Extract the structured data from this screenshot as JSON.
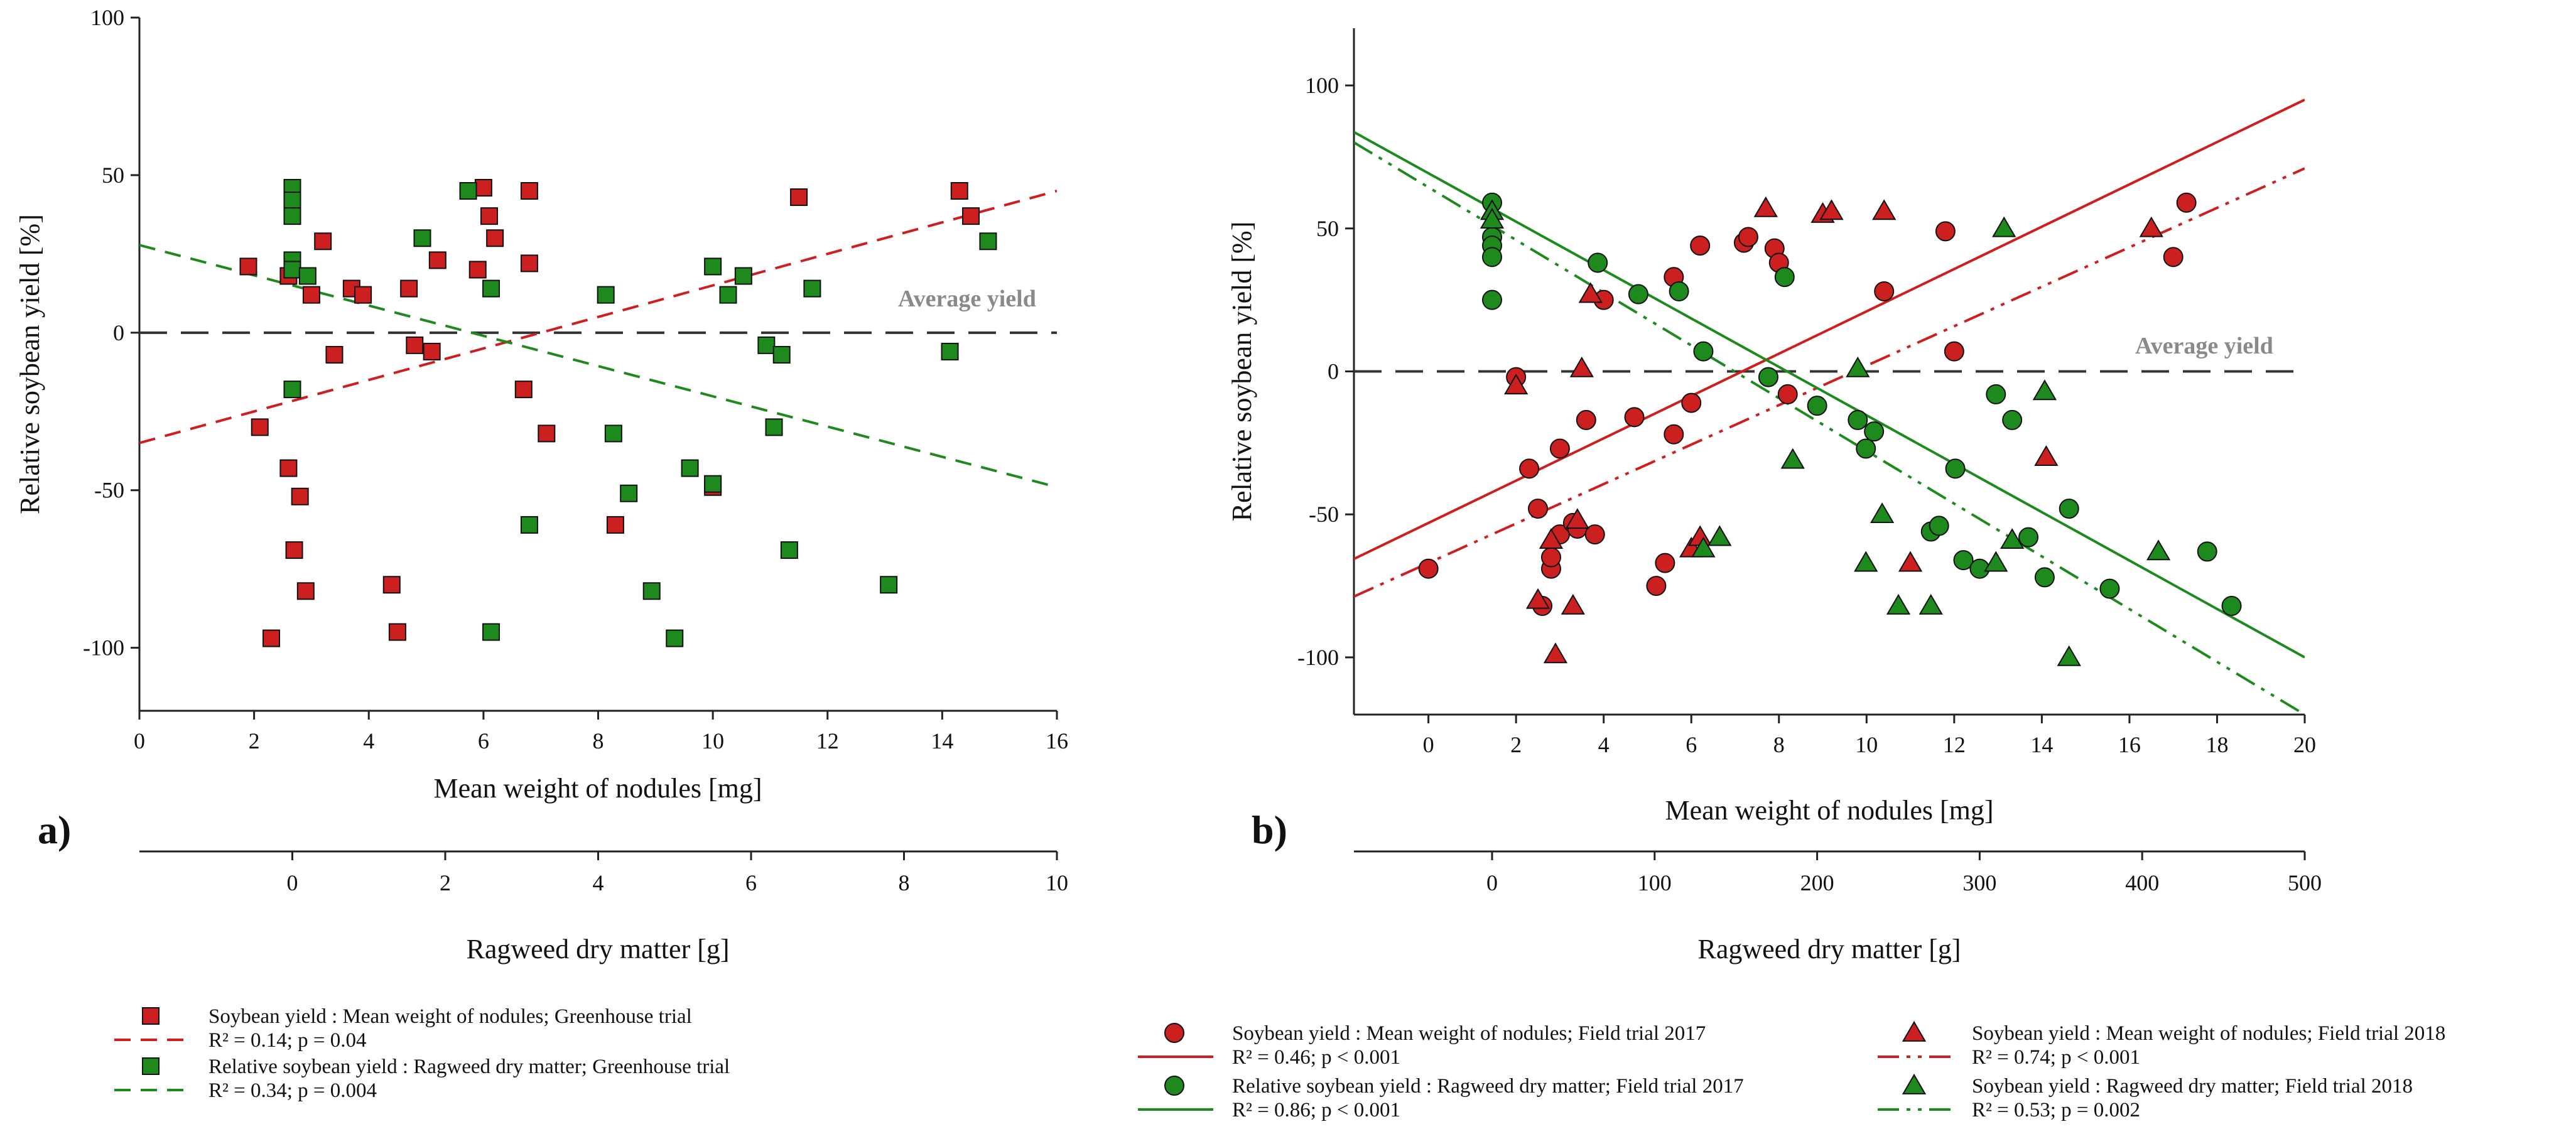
{
  "colors": {
    "red": "#cc1f1f",
    "green": "#1e8a1e",
    "average": "#333333",
    "average_label": "#8a8a8a",
    "axis": "#222222"
  },
  "chart_data": [
    {
      "id": "a",
      "type": "scatter",
      "panel_label": "a)",
      "ylabel": "Relative soybean yield [%]",
      "xlabel": "Mean weight of nodules [mg]",
      "x2label": "Ragweed dry matter [g]",
      "xlim": [
        0,
        16
      ],
      "ylim": [
        -120,
        100
      ],
      "yticks": [
        100,
        50,
        0,
        -50,
        -100
      ],
      "xticks": [
        0,
        2,
        4,
        6,
        8,
        10,
        12,
        14,
        16
      ],
      "x2lim": [
        -2,
        10
      ],
      "x2ticks": [
        0,
        2,
        4,
        6,
        8,
        10
      ],
      "average_label": "Average yield",
      "series": [
        {
          "name": "Soybean yield : Mean weight of nodules;  Greenhouse trial",
          "color": "red",
          "marker": "square",
          "axis": "x",
          "points": [
            [
              1.9,
              21
            ],
            [
              2.1,
              -30
            ],
            [
              2.3,
              -97
            ],
            [
              2.6,
              18
            ],
            [
              2.6,
              -43
            ],
            [
              2.7,
              -69
            ],
            [
              2.8,
              -52
            ],
            [
              2.9,
              -82
            ],
            [
              3.0,
              12
            ],
            [
              3.2,
              29
            ],
            [
              3.4,
              -7
            ],
            [
              3.7,
              14
            ],
            [
              3.9,
              12
            ],
            [
              4.4,
              -80
            ],
            [
              4.5,
              -95
            ],
            [
              4.7,
              14
            ],
            [
              4.8,
              -4
            ],
            [
              5.1,
              -6
            ],
            [
              5.2,
              23
            ],
            [
              5.9,
              20
            ],
            [
              6.0,
              46
            ],
            [
              6.1,
              37
            ],
            [
              6.2,
              30
            ],
            [
              6.7,
              -18
            ],
            [
              6.8,
              45
            ],
            [
              6.8,
              22
            ],
            [
              7.1,
              -32
            ],
            [
              8.3,
              -61
            ],
            [
              10.0,
              -49
            ],
            [
              11.5,
              43
            ],
            [
              14.3,
              45
            ],
            [
              14.5,
              37
            ]
          ]
        },
        {
          "name": "Relative soybean yield : Ragweed dry matter; Greenhouse trial",
          "color": "green",
          "marker": "square",
          "axis": "x2",
          "points": [
            [
              0,
              46
            ],
            [
              0,
              42
            ],
            [
              0,
              37
            ],
            [
              0,
              23
            ],
            [
              0,
              20
            ],
            [
              0,
              -18
            ],
            [
              0.2,
              18
            ],
            [
              1.7,
              30
            ],
            [
              2.3,
              45
            ],
            [
              2.6,
              14
            ],
            [
              2.6,
              -95
            ],
            [
              3.1,
              -61
            ],
            [
              4.1,
              12
            ],
            [
              4.2,
              -32
            ],
            [
              4.4,
              -51
            ],
            [
              4.7,
              -82
            ],
            [
              5.0,
              -97
            ],
            [
              5.2,
              -43
            ],
            [
              5.5,
              21
            ],
            [
              5.5,
              -48
            ],
            [
              5.7,
              12
            ],
            [
              5.9,
              18
            ],
            [
              6.2,
              -4
            ],
            [
              6.3,
              -30
            ],
            [
              6.4,
              -7
            ],
            [
              6.5,
              -69
            ],
            [
              6.8,
              14
            ],
            [
              7.8,
              -80
            ],
            [
              8.6,
              -6
            ],
            [
              9.1,
              29
            ]
          ]
        }
      ],
      "fits": [
        {
          "color": "red",
          "axis": "x",
          "style": "dashed",
          "intercept": -35,
          "slope": 5.0,
          "label": "R² = 0.14; p = 0.04"
        },
        {
          "color": "green",
          "axis": "x2",
          "style": "dashed",
          "intercept": 15,
          "slope": -6.4,
          "label": "R² = 0.34; p = 0.004"
        }
      ]
    },
    {
      "id": "b",
      "type": "scatter",
      "panel_label": "b)",
      "ylabel": "Relative soybean yield [%]",
      "xlabel": "Mean weight of nodules [mg]",
      "x2label": "Ragweed dry matter [g]",
      "xlim": [
        -1.7,
        20
      ],
      "ylim": [
        -120,
        120
      ],
      "yticks": [
        100,
        50,
        0,
        -50,
        -100
      ],
      "xticks": [
        0,
        2,
        4,
        6,
        8,
        10,
        12,
        14,
        16,
        18,
        20
      ],
      "x2lim": [
        -85,
        500
      ],
      "x2ticks": [
        0,
        100,
        200,
        300,
        400,
        500
      ],
      "average_label": "Average yield",
      "series": [
        {
          "name": "Soybean yield : Mean weight of nodules;  Field trial 2017",
          "color": "red",
          "marker": "circle",
          "axis": "x",
          "points": [
            [
              0,
              -69
            ],
            [
              2.0,
              -2
            ],
            [
              2.3,
              -34
            ],
            [
              2.5,
              -48
            ],
            [
              2.6,
              -82
            ],
            [
              2.8,
              -69
            ],
            [
              2.8,
              -65
            ],
            [
              3.0,
              -57
            ],
            [
              3.0,
              -27
            ],
            [
              3.3,
              -53
            ],
            [
              3.4,
              -55
            ],
            [
              3.6,
              -17
            ],
            [
              3.8,
              -57
            ],
            [
              4.0,
              25
            ],
            [
              4.7,
              -16
            ],
            [
              5.2,
              -75
            ],
            [
              5.4,
              -67
            ],
            [
              5.6,
              33
            ],
            [
              5.6,
              -22
            ],
            [
              6.0,
              -11
            ],
            [
              6.2,
              44
            ],
            [
              7.2,
              45
            ],
            [
              7.3,
              47
            ],
            [
              7.9,
              43
            ],
            [
              8.0,
              38
            ],
            [
              8.2,
              -8
            ],
            [
              10.4,
              28
            ],
            [
              11.8,
              49
            ],
            [
              12.0,
              7
            ],
            [
              17.0,
              40
            ],
            [
              17.3,
              59
            ]
          ]
        },
        {
          "name": "Soybean yield : Mean weight of nodules; Field trial 2018",
          "color": "red",
          "marker": "triangle",
          "axis": "x",
          "points": [
            [
              2.0,
              -5
            ],
            [
              2.5,
              -80
            ],
            [
              2.8,
              -59
            ],
            [
              2.9,
              -99
            ],
            [
              3.3,
              -82
            ],
            [
              3.4,
              -52
            ],
            [
              3.5,
              1
            ],
            [
              3.7,
              27
            ],
            [
              6.0,
              -62
            ],
            [
              6.2,
              -58
            ],
            [
              7.7,
              57
            ],
            [
              9.0,
              55
            ],
            [
              9.2,
              56
            ],
            [
              10.4,
              56
            ],
            [
              11.0,
              -67
            ],
            [
              14.1,
              -30
            ],
            [
              16.5,
              50
            ]
          ]
        },
        {
          "name": "Relative soybean yield : Ragweed dry matter; Field trial 2017",
          "color": "green",
          "marker": "circle",
          "axis": "x2",
          "points": [
            [
              0,
              59
            ],
            [
              0,
              47
            ],
            [
              0,
              44
            ],
            [
              0,
              40
            ],
            [
              0,
              25
            ],
            [
              65,
              38
            ],
            [
              90,
              27
            ],
            [
              115,
              28
            ],
            [
              130,
              7
            ],
            [
              180,
              33
            ],
            [
              170,
              -2
            ],
            [
              200,
              -12
            ],
            [
              225,
              -17
            ],
            [
              235,
              -21
            ],
            [
              270,
              -56
            ],
            [
              275,
              -54
            ],
            [
              285,
              -34
            ],
            [
              290,
              -66
            ],
            [
              300,
              -69
            ],
            [
              310,
              -8
            ],
            [
              320,
              -17
            ],
            [
              330,
              -58
            ],
            [
              340,
              -72
            ],
            [
              355,
              -48
            ],
            [
              380,
              -76
            ],
            [
              440,
              -63
            ],
            [
              455,
              -82
            ],
            [
              230,
              -27
            ]
          ]
        },
        {
          "name": "Soybean yield : Ragweed dry matter; Field trial 2018",
          "color": "green",
          "marker": "triangle",
          "axis": "x2",
          "points": [
            [
              0,
              56
            ],
            [
              0,
              53
            ],
            [
              130,
              -62
            ],
            [
              140,
              -58
            ],
            [
              185,
              -31
            ],
            [
              225,
              1
            ],
            [
              230,
              -67
            ],
            [
              240,
              -50
            ],
            [
              250,
              -82
            ],
            [
              270,
              -82
            ],
            [
              310,
              -67
            ],
            [
              315,
              50
            ],
            [
              320,
              -59
            ],
            [
              340,
              -7
            ],
            [
              355,
              -100
            ],
            [
              410,
              -63
            ]
          ]
        }
      ],
      "fits": [
        {
          "color": "red",
          "axis": "x",
          "style": "solid",
          "intercept": -53,
          "slope": 7.4,
          "label": "R² = 0.46; p < 0.001"
        },
        {
          "color": "red",
          "axis": "x",
          "style": "dashdotdot",
          "intercept": -67,
          "slope": 6.9,
          "label": "R² = 0.74; p < 0.001"
        },
        {
          "color": "green",
          "axis": "x2",
          "style": "solid",
          "intercept": 57,
          "slope": -0.314,
          "label": "R² = 0.86; p < 0.001"
        },
        {
          "color": "green",
          "axis": "x2",
          "style": "dashdotdot",
          "intercept": 51,
          "slope": -0.342,
          "label": "R² = 0.53; p = 0.002"
        }
      ]
    }
  ]
}
